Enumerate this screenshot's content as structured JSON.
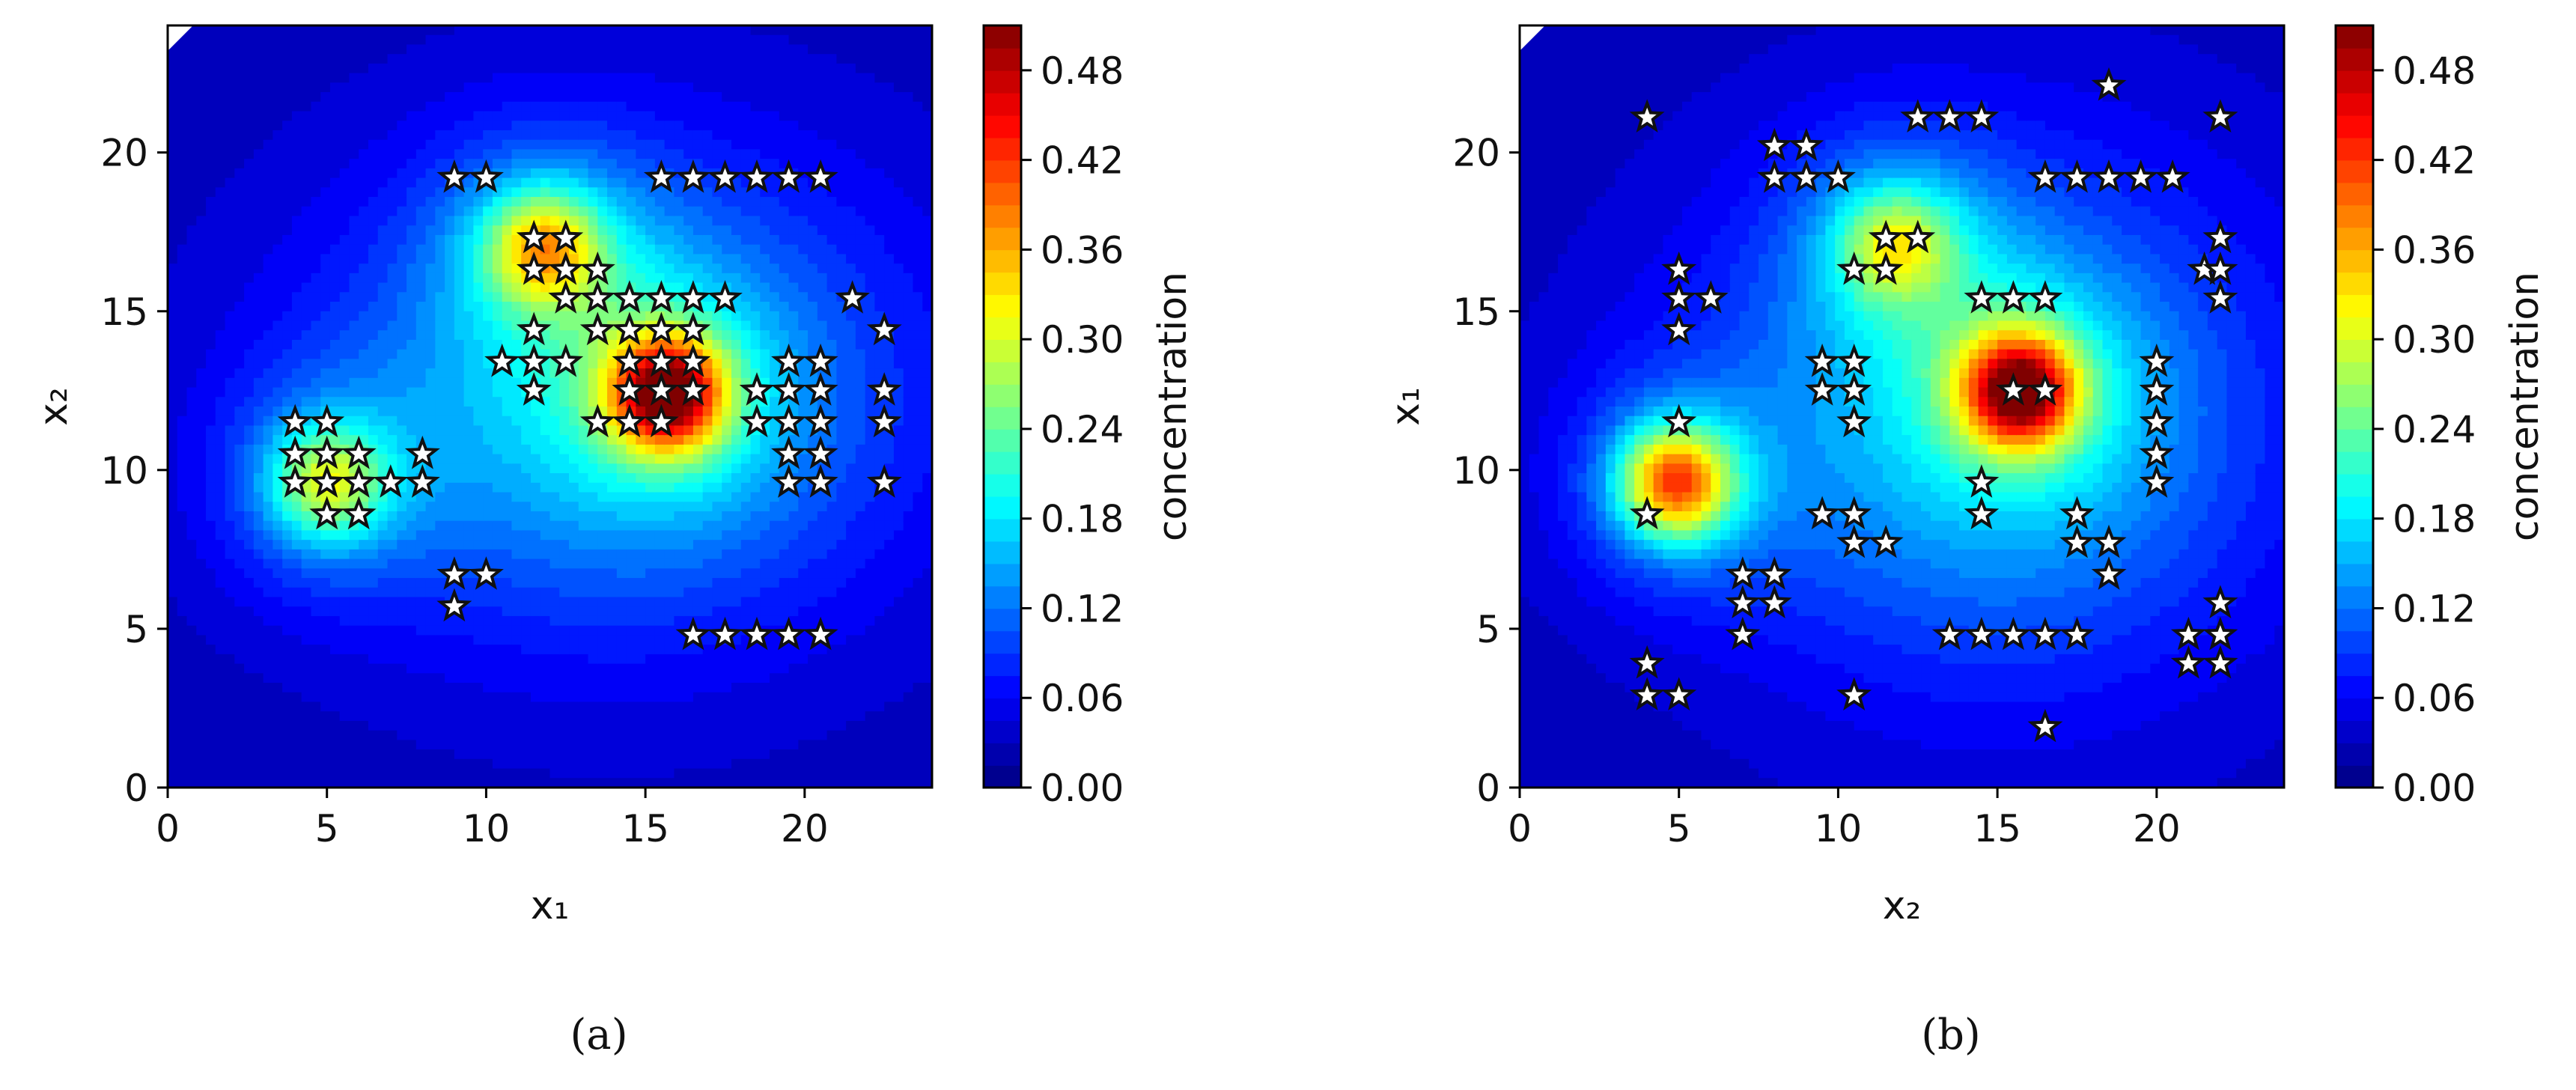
{
  "chart_data": [
    {
      "type": "heatmap",
      "panel_label": "(a)",
      "xlabel": "x₁",
      "ylabel": "x₂",
      "xlim": [
        0,
        24
      ],
      "ylim": [
        0,
        24
      ],
      "xticks": [
        0,
        5,
        10,
        15,
        20
      ],
      "yticks": [
        0,
        5,
        10,
        15,
        20
      ],
      "colorbar": {
        "label": "concentration",
        "range": [
          0,
          0.51
        ],
        "ticks": [
          "0.00",
          "0.06",
          "0.12",
          "0.18",
          "0.24",
          "0.30",
          "0.36",
          "0.42",
          "0.48"
        ],
        "colormap": "jet"
      },
      "field_peaks": [
        {
          "x": 15.7,
          "y": 12.4,
          "peak": 0.45
        },
        {
          "x": 11.8,
          "y": 17.0,
          "peak": 0.3
        },
        {
          "x": 5.0,
          "y": 9.6,
          "peak": 0.28
        }
      ],
      "sensors": [
        [
          4,
          11.5
        ],
        [
          5,
          11.5
        ],
        [
          4,
          10.5
        ],
        [
          5,
          10.5
        ],
        [
          6,
          10.5
        ],
        [
          8,
          10.5
        ],
        [
          4,
          9.6
        ],
        [
          5,
          9.6
        ],
        [
          6,
          9.6
        ],
        [
          7,
          9.6
        ],
        [
          8,
          9.6
        ],
        [
          5,
          8.6
        ],
        [
          6,
          8.6
        ],
        [
          9,
          19.2
        ],
        [
          10,
          19.2
        ],
        [
          15.5,
          19.2
        ],
        [
          16.5,
          19.2
        ],
        [
          17.5,
          19.2
        ],
        [
          18.5,
          19.2
        ],
        [
          19.5,
          19.2
        ],
        [
          20.5,
          19.2
        ],
        [
          11.5,
          17.3
        ],
        [
          12.5,
          17.3
        ],
        [
          11.5,
          16.3
        ],
        [
          12.5,
          16.3
        ],
        [
          13.5,
          16.3
        ],
        [
          12.5,
          15.4
        ],
        [
          13.5,
          15.4
        ],
        [
          14.5,
          15.4
        ],
        [
          15.5,
          15.4
        ],
        [
          16.5,
          15.4
        ],
        [
          17.5,
          15.4
        ],
        [
          21.5,
          15.4
        ],
        [
          11.5,
          14.4
        ],
        [
          13.5,
          14.4
        ],
        [
          14.5,
          14.4
        ],
        [
          15.5,
          14.4
        ],
        [
          16.5,
          14.4
        ],
        [
          22.5,
          14.4
        ],
        [
          10.5,
          13.4
        ],
        [
          11.5,
          13.4
        ],
        [
          12.5,
          13.4
        ],
        [
          14.5,
          13.4
        ],
        [
          15.5,
          13.4
        ],
        [
          16.5,
          13.4
        ],
        [
          19.5,
          13.4
        ],
        [
          20.5,
          13.4
        ],
        [
          11.5,
          12.5
        ],
        [
          14.5,
          12.5
        ],
        [
          15.5,
          12.5
        ],
        [
          16.5,
          12.5
        ],
        [
          18.5,
          12.5
        ],
        [
          19.5,
          12.5
        ],
        [
          20.5,
          12.5
        ],
        [
          22.5,
          12.5
        ],
        [
          13.5,
          11.5
        ],
        [
          14.5,
          11.5
        ],
        [
          15.5,
          11.5
        ],
        [
          18.5,
          11.5
        ],
        [
          19.5,
          11.5
        ],
        [
          20.5,
          11.5
        ],
        [
          22.5,
          11.5
        ],
        [
          19.5,
          10.5
        ],
        [
          20.5,
          10.5
        ],
        [
          19.5,
          9.6
        ],
        [
          20.5,
          9.6
        ],
        [
          22.5,
          9.6
        ],
        [
          9,
          6.7
        ],
        [
          10,
          6.7
        ],
        [
          9,
          5.7
        ],
        [
          16.5,
          4.8
        ],
        [
          17.5,
          4.8
        ],
        [
          18.5,
          4.8
        ],
        [
          19.5,
          4.8
        ],
        [
          20.5,
          4.8
        ]
      ]
    },
    {
      "type": "heatmap",
      "panel_label": "(b)",
      "xlabel": "x₂",
      "ylabel": "x₁",
      "xlim": [
        0,
        24
      ],
      "ylim": [
        0,
        24
      ],
      "xticks": [
        0,
        5,
        10,
        15,
        20
      ],
      "yticks": [
        0,
        5,
        10,
        15,
        20
      ],
      "colorbar": {
        "label": "concentration",
        "range": [
          0,
          0.51
        ],
        "ticks": [
          "0.00",
          "0.06",
          "0.12",
          "0.18",
          "0.24",
          "0.30",
          "0.36",
          "0.42",
          "0.48"
        ],
        "colormap": "jet"
      },
      "field_peaks": [
        {
          "x": 15.7,
          "y": 12.5,
          "peak": 0.45
        },
        {
          "x": 11.8,
          "y": 17.1,
          "peak": 0.26
        },
        {
          "x": 4.9,
          "y": 9.6,
          "peak": 0.4
        }
      ],
      "sensors": [
        [
          18.5,
          22.1
        ],
        [
          4,
          21.1
        ],
        [
          12.5,
          21.1
        ],
        [
          13.5,
          21.1
        ],
        [
          14.5,
          21.1
        ],
        [
          22,
          21.1
        ],
        [
          8,
          20.2
        ],
        [
          9,
          20.2
        ],
        [
          8,
          19.2
        ],
        [
          9,
          19.2
        ],
        [
          10,
          19.2
        ],
        [
          16.5,
          19.2
        ],
        [
          17.5,
          19.2
        ],
        [
          18.5,
          19.2
        ],
        [
          19.5,
          19.2
        ],
        [
          20.5,
          19.2
        ],
        [
          11.5,
          17.3
        ],
        [
          12.5,
          17.3
        ],
        [
          22,
          17.3
        ],
        [
          5,
          16.3
        ],
        [
          10.5,
          16.3
        ],
        [
          11.5,
          16.3
        ],
        [
          21.5,
          16.3
        ],
        [
          22,
          16.3
        ],
        [
          5,
          15.4
        ],
        [
          6,
          15.4
        ],
        [
          14.5,
          15.4
        ],
        [
          15.5,
          15.4
        ],
        [
          16.5,
          15.4
        ],
        [
          22,
          15.4
        ],
        [
          5,
          14.4
        ],
        [
          9.5,
          13.4
        ],
        [
          10.5,
          13.4
        ],
        [
          20,
          13.4
        ],
        [
          9.5,
          12.5
        ],
        [
          10.5,
          12.5
        ],
        [
          15.5,
          12.5
        ],
        [
          16.5,
          12.5
        ],
        [
          20,
          12.5
        ],
        [
          5,
          11.5
        ],
        [
          10.5,
          11.5
        ],
        [
          20,
          11.5
        ],
        [
          20,
          10.5
        ],
        [
          14.5,
          9.6
        ],
        [
          20,
          9.6
        ],
        [
          4,
          8.6
        ],
        [
          9.5,
          8.6
        ],
        [
          10.5,
          8.6
        ],
        [
          14.5,
          8.6
        ],
        [
          17.5,
          8.6
        ],
        [
          10.5,
          7.7
        ],
        [
          11.5,
          7.7
        ],
        [
          17.5,
          7.7
        ],
        [
          18.5,
          7.7
        ],
        [
          7,
          6.7
        ],
        [
          8,
          6.7
        ],
        [
          18.5,
          6.7
        ],
        [
          7,
          5.8
        ],
        [
          8,
          5.8
        ],
        [
          22,
          5.8
        ],
        [
          7,
          4.8
        ],
        [
          13.5,
          4.8
        ],
        [
          14.5,
          4.8
        ],
        [
          15.5,
          4.8
        ],
        [
          16.5,
          4.8
        ],
        [
          17.5,
          4.8
        ],
        [
          21,
          4.8
        ],
        [
          22,
          4.8
        ],
        [
          4,
          3.9
        ],
        [
          21,
          3.9
        ],
        [
          22,
          3.9
        ],
        [
          4,
          2.9
        ],
        [
          5,
          2.9
        ],
        [
          10.5,
          2.9
        ],
        [
          16.5,
          1.9
        ]
      ]
    }
  ]
}
